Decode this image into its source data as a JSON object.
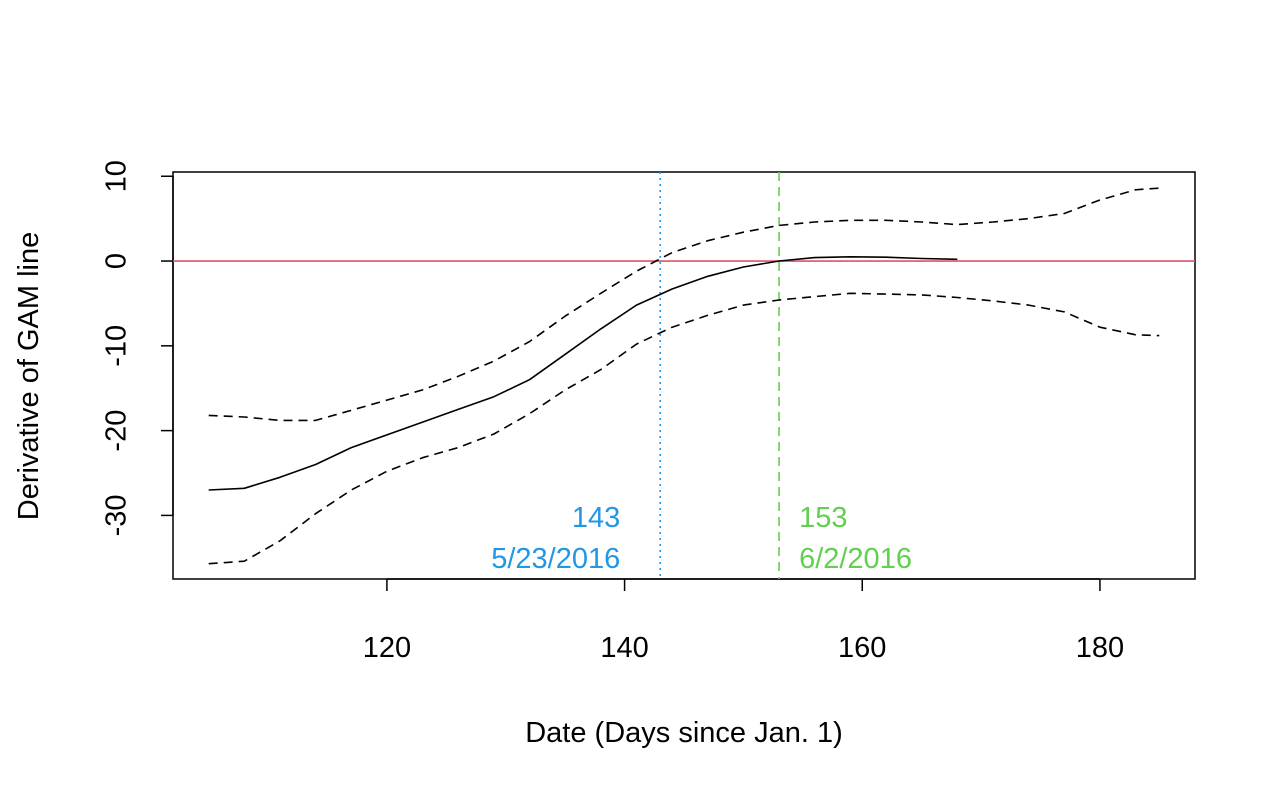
{
  "chart_data": {
    "type": "line",
    "title": "",
    "xlabel": "Date (Days since Jan. 1)",
    "ylabel": "Derivative of GAM line",
    "xlim": [
      102,
      188
    ],
    "ylim": [
      -37.5,
      10.5
    ],
    "x_ticks": [
      120,
      140,
      160,
      180
    ],
    "y_ticks": [
      10,
      0,
      -10,
      -20,
      -30
    ],
    "grid": false,
    "legend": "none",
    "series": [
      {
        "style": "solid",
        "color": "#000000",
        "points": [
          [
            105,
            -27
          ],
          [
            108,
            -26.8
          ],
          [
            111,
            -25.5
          ],
          [
            114,
            -24
          ],
          [
            117,
            -22
          ],
          [
            120,
            -20.5
          ],
          [
            123,
            -19
          ],
          [
            126,
            -17.5
          ],
          [
            129,
            -16
          ],
          [
            132,
            -14
          ],
          [
            135,
            -11
          ],
          [
            138,
            -8
          ],
          [
            141,
            -5.2
          ],
          [
            144,
            -3.3
          ],
          [
            147,
            -1.8
          ],
          [
            150,
            -0.7
          ],
          [
            153,
            0
          ],
          [
            156,
            0.4
          ],
          [
            159,
            0.5
          ],
          [
            162,
            0.45
          ],
          [
            165,
            0.3
          ],
          [
            168,
            0.2
          ]
        ]
      },
      {
        "style": "dashed",
        "color": "#000000",
        "points": [
          [
            105,
            -18.2
          ],
          [
            108,
            -18.4
          ],
          [
            111,
            -18.8
          ],
          [
            114,
            -18.8
          ],
          [
            117,
            -17.6
          ],
          [
            120,
            -16.4
          ],
          [
            123,
            -15.2
          ],
          [
            126,
            -13.6
          ],
          [
            129,
            -11.8
          ],
          [
            132,
            -9.5
          ],
          [
            135,
            -6.5
          ],
          [
            138,
            -3.8
          ],
          [
            141,
            -1.2
          ],
          [
            144,
            1.0
          ],
          [
            147,
            2.4
          ],
          [
            150,
            3.4
          ],
          [
            153,
            4.2
          ],
          [
            156,
            4.6
          ],
          [
            159,
            4.8
          ],
          [
            162,
            4.8
          ],
          [
            165,
            4.6
          ],
          [
            168,
            4.3
          ],
          [
            171,
            4.6
          ],
          [
            174,
            5.0
          ],
          [
            177,
            5.6
          ],
          [
            180,
            7.2
          ],
          [
            183,
            8.4
          ],
          [
            185,
            8.6
          ]
        ]
      },
      {
        "style": "dashed",
        "color": "#000000",
        "points": [
          [
            105,
            -35.7
          ],
          [
            108,
            -35.4
          ],
          [
            111,
            -33
          ],
          [
            114,
            -29.8
          ],
          [
            117,
            -27
          ],
          [
            120,
            -24.8
          ],
          [
            123,
            -23.2
          ],
          [
            126,
            -22
          ],
          [
            129,
            -20.4
          ],
          [
            132,
            -18
          ],
          [
            135,
            -15.2
          ],
          [
            138,
            -12.8
          ],
          [
            141,
            -9.8
          ],
          [
            144,
            -7.8
          ],
          [
            147,
            -6.4
          ],
          [
            150,
            -5.2
          ],
          [
            153,
            -4.6
          ],
          [
            156,
            -4.2
          ],
          [
            159,
            -3.8
          ],
          [
            162,
            -3.9
          ],
          [
            165,
            -4
          ],
          [
            168,
            -4.3
          ],
          [
            171,
            -4.7
          ],
          [
            174,
            -5.2
          ],
          [
            177,
            -6
          ],
          [
            180,
            -7.8
          ],
          [
            183,
            -8.7
          ],
          [
            185,
            -8.8
          ]
        ]
      }
    ],
    "hlines": [
      {
        "y": 0,
        "color": "#DF536B",
        "style": "solid"
      }
    ],
    "vlines": [
      {
        "x": 143,
        "color": "#2297E6",
        "style": "dotted"
      },
      {
        "x": 153,
        "color": "#61D04F",
        "style": "dashed"
      }
    ],
    "annotations": [
      {
        "text": "143",
        "x": 143,
        "y": -30.2,
        "color": "#2297E6",
        "anchor": "end",
        "name": "annotation-day-143"
      },
      {
        "text": "5/23/2016",
        "x": 143,
        "y": -35,
        "color": "#2297E6",
        "anchor": "end",
        "name": "annotation-date-5-23-2016"
      },
      {
        "text": "153",
        "x": 153,
        "y": -30.2,
        "color": "#61D04F",
        "anchor": "start",
        "name": "annotation-day-153"
      },
      {
        "text": "6/2/2016",
        "x": 153,
        "y": -35,
        "color": "#61D04F",
        "anchor": "start",
        "name": "annotation-date-6-2-2016"
      }
    ]
  }
}
